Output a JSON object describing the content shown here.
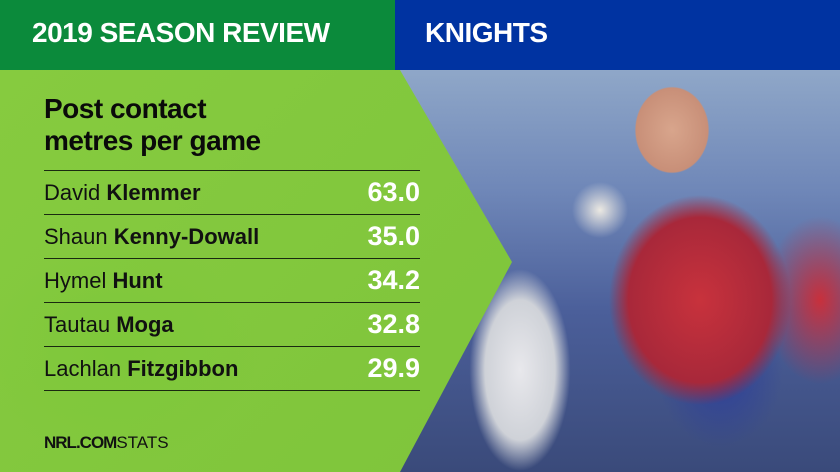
{
  "header": {
    "left_title": "2019 SEASON REVIEW",
    "team": "KNIGHTS",
    "left_color": "#0b8a3b",
    "right_color": "#0033a1",
    "team_logo": "knight-helmet-icon"
  },
  "stat": {
    "title_line1": "Post contact",
    "title_line2": "metres per game"
  },
  "players": [
    {
      "first": "David",
      "last": "Klemmer",
      "value": "63.0"
    },
    {
      "first": "Shaun",
      "last": "Kenny-Dowall",
      "value": "35.0"
    },
    {
      "first": "Hymel",
      "last": "Hunt",
      "value": "34.2"
    },
    {
      "first": "Tautau",
      "last": "Moga",
      "value": "32.8"
    },
    {
      "first": "Lachlan",
      "last": "Fitzgibbon",
      "value": "29.9"
    }
  ],
  "footer": {
    "brand": "NRL.COM",
    "suffix": "STATS"
  }
}
